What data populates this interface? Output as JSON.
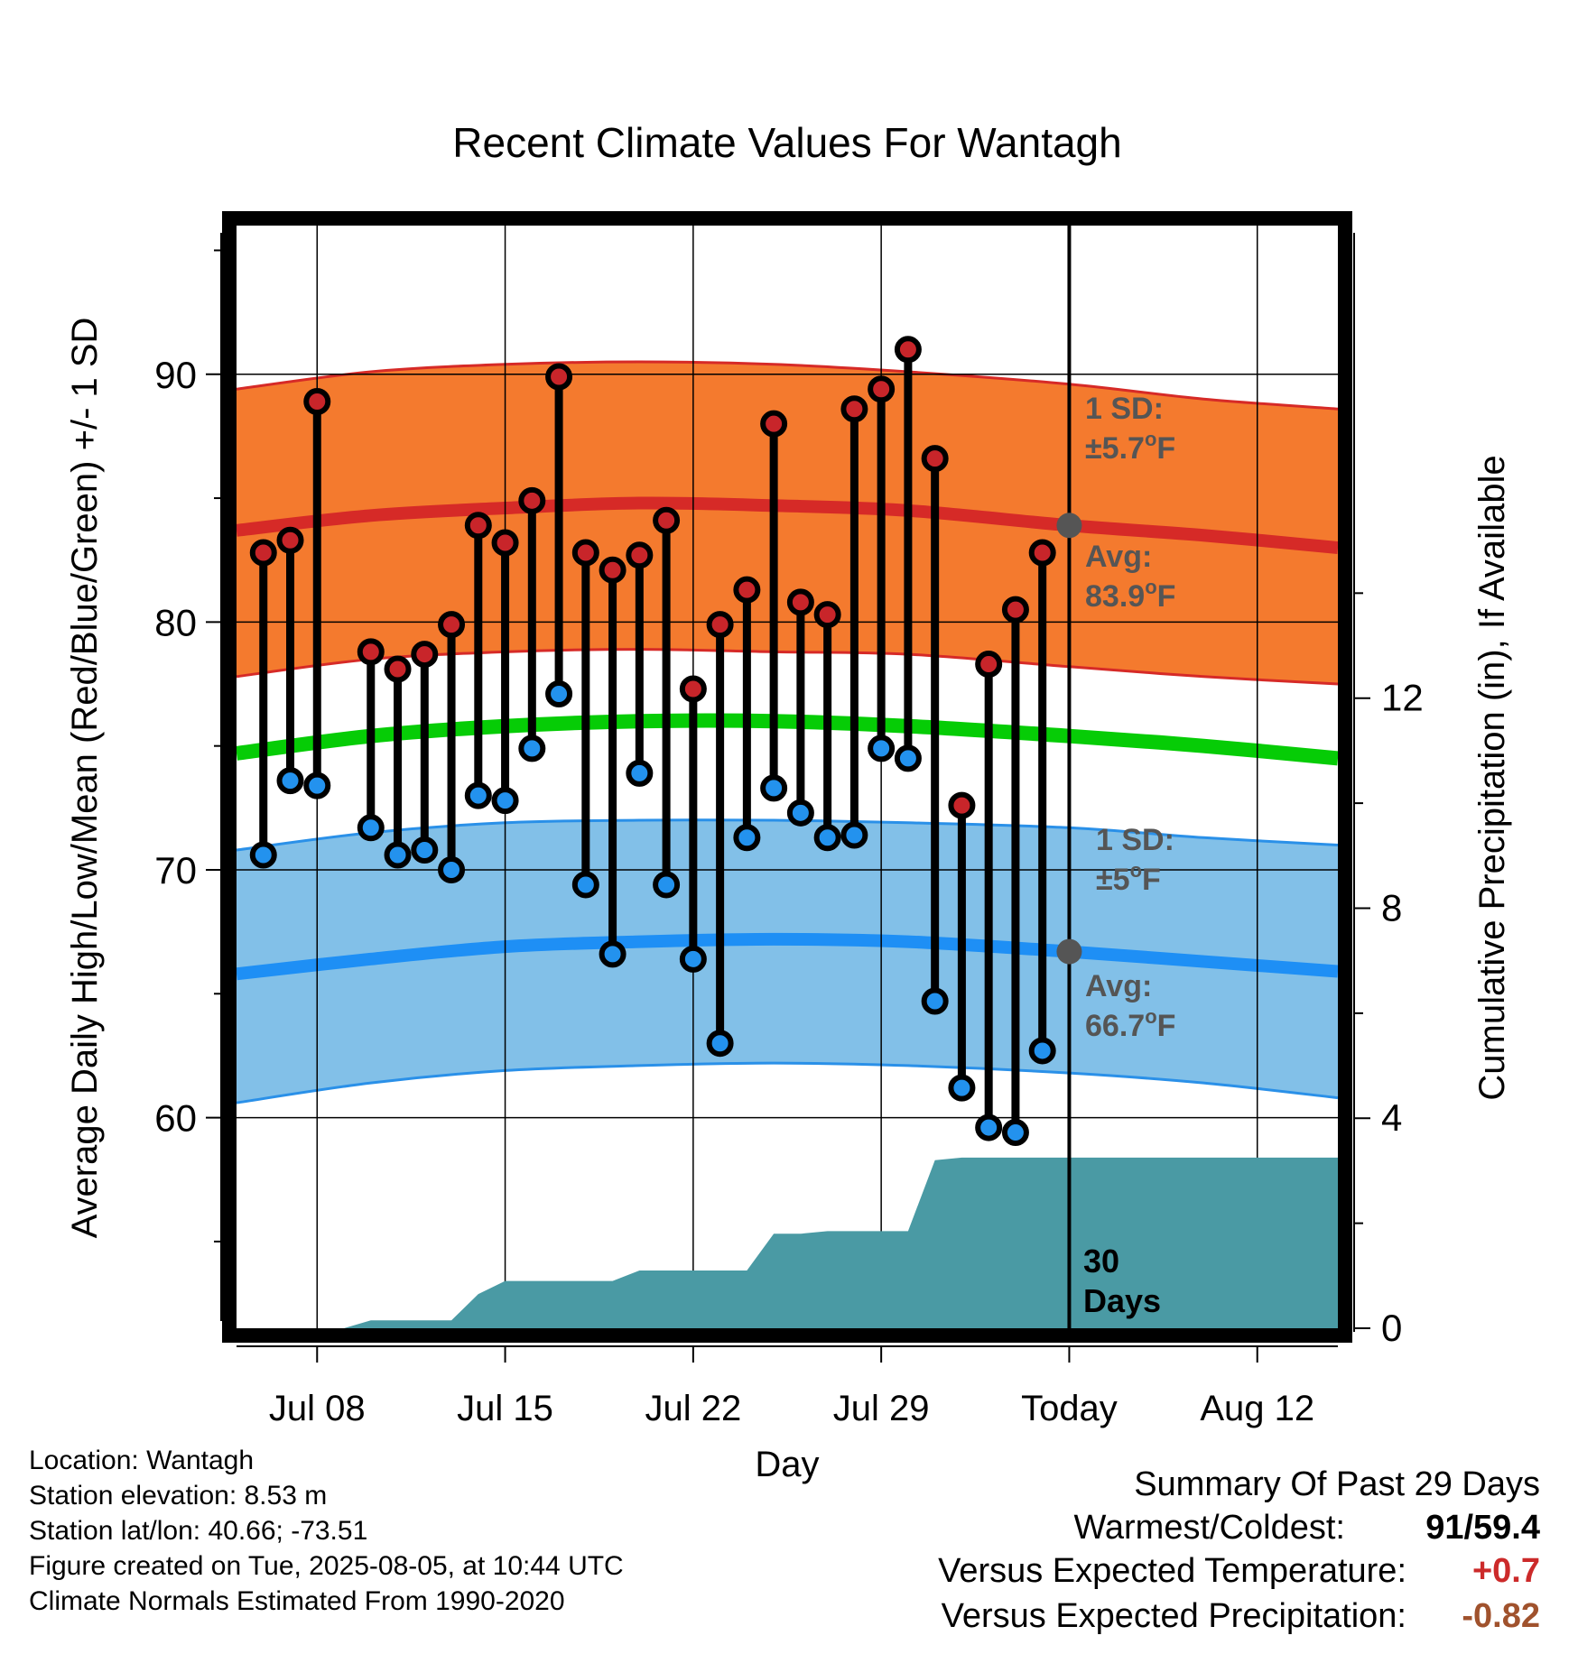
{
  "chart_data": {
    "type": "line",
    "title": "Recent Climate Values For Wantagh",
    "xlabel": "Day",
    "ylabel_left": "Average Daily High/Low/Mean (Red/Blue/Green) +/- 1 SD",
    "ylabel_right": "Cumulative Precipitation (in), If Available",
    "x_tick_labels": [
      "Jul 08",
      "Jul 15",
      "Jul 22",
      "Jul 29",
      "Today",
      "Aug 12"
    ],
    "y_left_ticks": [
      60,
      70,
      80,
      90
    ],
    "y_right_ticks": [
      0,
      4,
      8,
      12
    ],
    "ylim_left": [
      51.5,
      96
    ],
    "ylim_right": [
      0,
      21
    ],
    "x_start_date": "2025-07-05",
    "x_end_date": "2025-08-15",
    "today_date": "2025-08-05",
    "daily_observations": {
      "dates": [
        "2025-07-06",
        "2025-07-07",
        "2025-07-08",
        "2025-07-10",
        "2025-07-11",
        "2025-07-12",
        "2025-07-13",
        "2025-07-14",
        "2025-07-15",
        "2025-07-16",
        "2025-07-17",
        "2025-07-18",
        "2025-07-19",
        "2025-07-20",
        "2025-07-21",
        "2025-07-22",
        "2025-07-23",
        "2025-07-24",
        "2025-07-25",
        "2025-07-26",
        "2025-07-27",
        "2025-07-28",
        "2025-07-29",
        "2025-07-30",
        "2025-07-31",
        "2025-08-01",
        "2025-08-02",
        "2025-08-03",
        "2025-08-04"
      ],
      "highs": [
        82.8,
        83.3,
        88.9,
        78.8,
        78.1,
        78.7,
        79.9,
        83.9,
        83.2,
        84.9,
        89.9,
        82.8,
        82.1,
        82.7,
        84.1,
        77.3,
        79.9,
        81.3,
        88.0,
        80.8,
        80.3,
        88.6,
        89.4,
        91.0,
        86.6,
        72.6,
        78.3,
        80.5,
        82.8
      ],
      "lows": [
        70.6,
        73.6,
        73.4,
        71.7,
        70.6,
        70.8,
        70.0,
        73.0,
        72.8,
        74.9,
        77.1,
        69.4,
        66.6,
        73.9,
        69.4,
        66.4,
        63.0,
        71.3,
        73.3,
        72.3,
        71.3,
        71.4,
        74.9,
        74.5,
        64.7,
        61.2,
        59.6,
        59.4,
        62.7
      ]
    },
    "normals": {
      "dates": [
        "2025-07-05",
        "2025-07-10",
        "2025-07-15",
        "2025-07-20",
        "2025-07-25",
        "2025-07-30",
        "2025-08-05",
        "2025-08-10",
        "2025-08-15"
      ],
      "high_avg": [
        83.7,
        84.3,
        84.6,
        84.8,
        84.7,
        84.5,
        83.9,
        83.5,
        83.0
      ],
      "high_upper": [
        89.4,
        90.1,
        90.4,
        90.5,
        90.4,
        90.1,
        89.6,
        89.0,
        88.6
      ],
      "high_lower": [
        77.8,
        78.5,
        78.8,
        78.9,
        78.8,
        78.7,
        78.2,
        77.8,
        77.5
      ],
      "mean_avg": [
        74.7,
        75.4,
        75.8,
        76.0,
        76.0,
        75.8,
        75.4,
        75.0,
        74.5
      ],
      "low_avg": [
        65.8,
        66.4,
        66.9,
        67.1,
        67.2,
        67.1,
        66.7,
        66.3,
        65.9
      ],
      "low_upper": [
        70.8,
        71.5,
        71.9,
        72.0,
        72.0,
        71.9,
        71.7,
        71.3,
        71.0
      ],
      "low_lower": [
        60.6,
        61.4,
        61.9,
        62.1,
        62.2,
        62.1,
        61.8,
        61.4,
        60.8
      ]
    },
    "precip_cumulative": {
      "dates": [
        "2025-07-05",
        "2025-07-06",
        "2025-07-07",
        "2025-07-08",
        "2025-07-09",
        "2025-07-10",
        "2025-07-11",
        "2025-07-12",
        "2025-07-13",
        "2025-07-14",
        "2025-07-15",
        "2025-07-16",
        "2025-07-17",
        "2025-07-18",
        "2025-07-19",
        "2025-07-20",
        "2025-07-21",
        "2025-07-22",
        "2025-07-23",
        "2025-07-24",
        "2025-07-25",
        "2025-07-26",
        "2025-07-27",
        "2025-07-28",
        "2025-07-29",
        "2025-07-30",
        "2025-07-31",
        "2025-08-01",
        "2025-08-15"
      ],
      "values": [
        0,
        0,
        0,
        0,
        0,
        0.15,
        0.15,
        0.15,
        0.15,
        0.65,
        0.9,
        0.9,
        0.9,
        0.9,
        0.9,
        1.1,
        1.1,
        1.1,
        1.1,
        1.1,
        1.8,
        1.8,
        1.85,
        1.85,
        1.85,
        1.85,
        3.2,
        3.25,
        3.25
      ]
    },
    "annotations": {
      "high_sd_label": "1 SD:",
      "high_sd_value": "±5.7",
      "high_avg_label": "Avg:",
      "high_avg_value": "83.9",
      "low_sd_label": "1 SD:",
      "low_sd_value": "±5",
      "low_avg_label": "Avg:",
      "low_avg_value": "66.7",
      "degree_symbol": "o",
      "unit_letter": "F",
      "days_number": "30",
      "days_word": "Days"
    },
    "colors": {
      "high_band": "#f47a2e",
      "high_line": "#d62a27",
      "low_band": "#82c0e8",
      "low_line": "#1e8ff5",
      "low_band_edge": "#2a90e8",
      "mean_line": "#06cc06",
      "precip_fill": "#4a9aa4",
      "high_dot": "#c8252a",
      "low_dot": "#2392ee",
      "annotation_text": "#555555",
      "today_marker": "#555555"
    }
  },
  "info": {
    "location": "Location: Wantagh",
    "elevation": "Station elevation: 8.53 m",
    "latlon": "Station lat/lon: 40.66; -73.51",
    "created": "Figure created on Tue, 2025-08-05, at 10:44 UTC",
    "normals": "Climate Normals Estimated From 1990-2020"
  },
  "summary": {
    "title": "Summary Of Past 29 Days",
    "warm_cold_label": "Warmest/Coldest:",
    "warm_value": "91",
    "slash": "/",
    "cold_value": "59.4",
    "temp_label": "Versus Expected Temperature:",
    "temp_value": "+0.7",
    "temp_color": "#cc2a2a",
    "precip_label": "Versus Expected Precipitation:",
    "precip_value": "-0.82",
    "precip_color": "#a0522d"
  }
}
